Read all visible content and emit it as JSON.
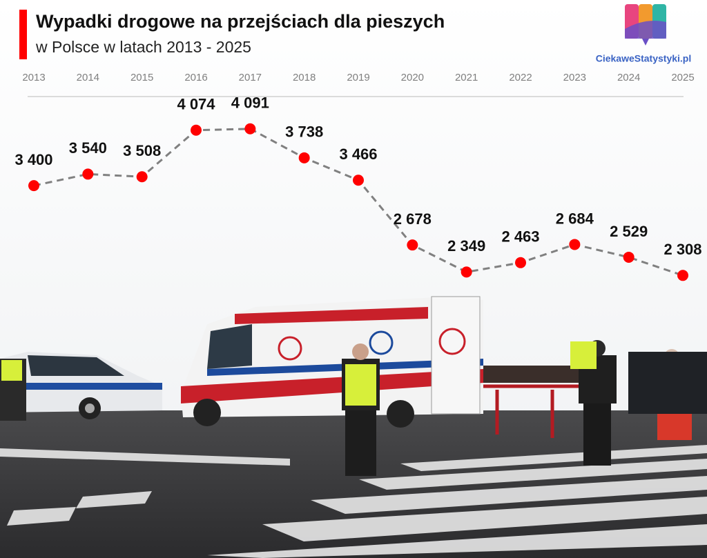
{
  "chart_data": {
    "type": "line",
    "title": "Wypadki drogowe na przejściach dla pieszych",
    "subtitle": "w Polsce w latach 2013 - 2025",
    "source": "CiekaweStatystyki.pl",
    "categories": [
      "2013",
      "2014",
      "2015",
      "2016",
      "2017",
      "2018",
      "2019",
      "2020",
      "2021",
      "2022",
      "2023",
      "2024",
      "2025"
    ],
    "values": [
      3400,
      3540,
      3508,
      4074,
      4091,
      3738,
      3466,
      2678,
      2349,
      2463,
      2684,
      2529,
      2308
    ],
    "value_labels": [
      "3 400",
      "3 540",
      "3 508",
      "4 074",
      "4 091",
      "3 738",
      "3 466",
      "2 678",
      "2 349",
      "2 463",
      "2 684",
      "2 529",
      "2 308"
    ],
    "ylim": [
      2000,
      4500
    ],
    "line_color": "#808080",
    "marker_color": "#ff0000",
    "grid": false
  }
}
